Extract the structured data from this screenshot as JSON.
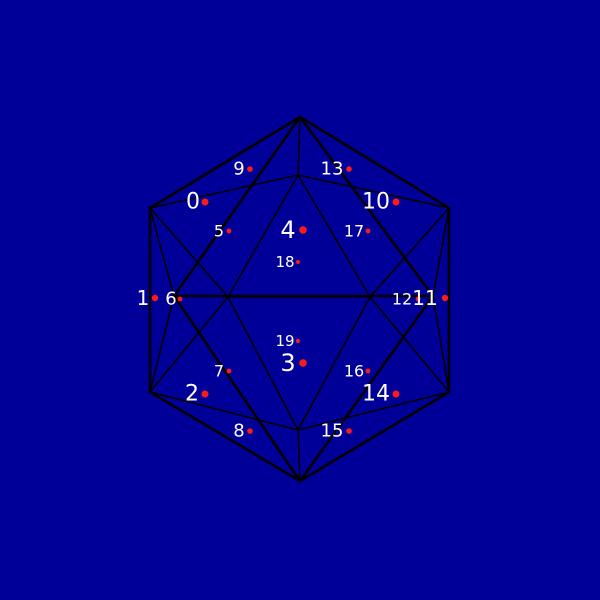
{
  "background_color": "#000099",
  "edge_color": "#000000",
  "dot_color": "#ff1a1a",
  "label_color": "#ffffff",
  "figure": "wireframe icosahedron with numbered face centers",
  "face_labels": [
    "0",
    "1",
    "2",
    "3",
    "4",
    "5",
    "6",
    "7",
    "8",
    "9",
    "10",
    "11",
    "12",
    "13",
    "14",
    "15",
    "16",
    "17",
    "18",
    "19"
  ]
}
